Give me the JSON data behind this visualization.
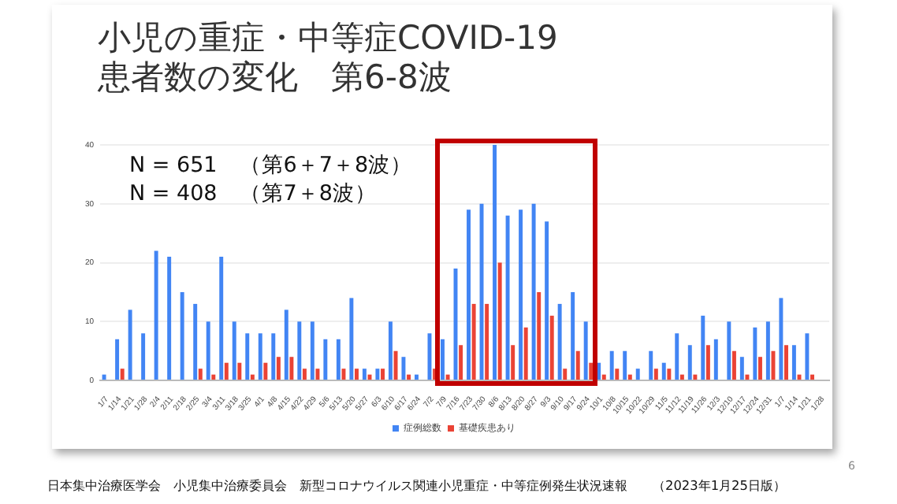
{
  "chart_data": {
    "type": "bar",
    "title": "小児の重症・中等症COVID-19\n患者数の変化　第6-8波",
    "categories": [
      "1/7",
      "1/14",
      "1/21",
      "1/28",
      "2/4",
      "2/11",
      "2/18",
      "2/25",
      "3/4",
      "3/11",
      "3/18",
      "3/25",
      "4/1",
      "4/8",
      "4/15",
      "4/22",
      "4/29",
      "5/6",
      "5/13",
      "5/20",
      "5/27",
      "6/3",
      "6/10",
      "6/17",
      "6/24",
      "7/2",
      "7/9",
      "7/16",
      "7/23",
      "7/30",
      "8/6",
      "8/13",
      "8/20",
      "8/27",
      "9/3",
      "9/10",
      "9/17",
      "9/24",
      "10/1",
      "10/8",
      "10/15",
      "10/22",
      "10/29",
      "11/5",
      "11/12",
      "11/19",
      "11/26",
      "12/3",
      "12/10",
      "12/17",
      "12/24",
      "12/31",
      "1/7",
      "1/14",
      "1/21",
      "1/28"
    ],
    "series": [
      {
        "name": "症例総数",
        "color": "#4285f4",
        "values": [
          1,
          7,
          12,
          8,
          22,
          21,
          15,
          13,
          10,
          21,
          10,
          8,
          8,
          8,
          12,
          10,
          10,
          7,
          7,
          14,
          2,
          2,
          10,
          4,
          1,
          8,
          7,
          19,
          29,
          30,
          40,
          28,
          29,
          30,
          27,
          13,
          15,
          10,
          3,
          5,
          5,
          2,
          5,
          3,
          8,
          6,
          11,
          7,
          10,
          4,
          9,
          10,
          14,
          6,
          8,
          0
        ]
      },
      {
        "name": "基礎疾患あり",
        "color": "#ea4335",
        "values": [
          0,
          2,
          0,
          0,
          0,
          0,
          0,
          2,
          1,
          3,
          3,
          1,
          3,
          4,
          4,
          2,
          2,
          0,
          2,
          2,
          1,
          2,
          5,
          1,
          0,
          2,
          1,
          6,
          13,
          13,
          20,
          6,
          9,
          15,
          11,
          2,
          5,
          3,
          1,
          2,
          1,
          0,
          2,
          2,
          1,
          1,
          6,
          0,
          5,
          1,
          4,
          5,
          6,
          1,
          1,
          0
        ]
      }
    ],
    "ylim": [
      0,
      40
    ],
    "yticks": [
      0,
      10,
      20,
      30,
      40
    ],
    "grid": "y",
    "legend": "bottom",
    "annotations": [
      "N = 651　（第6＋7＋8波）",
      "N = 408　（第7＋8波）",
      "6",
      "日本集中治療医学会　小児集中治療委員会　新型コロナウイルス関連小児重症・中等症例発生状況速報　　（2023年1月25日版）"
    ]
  }
}
